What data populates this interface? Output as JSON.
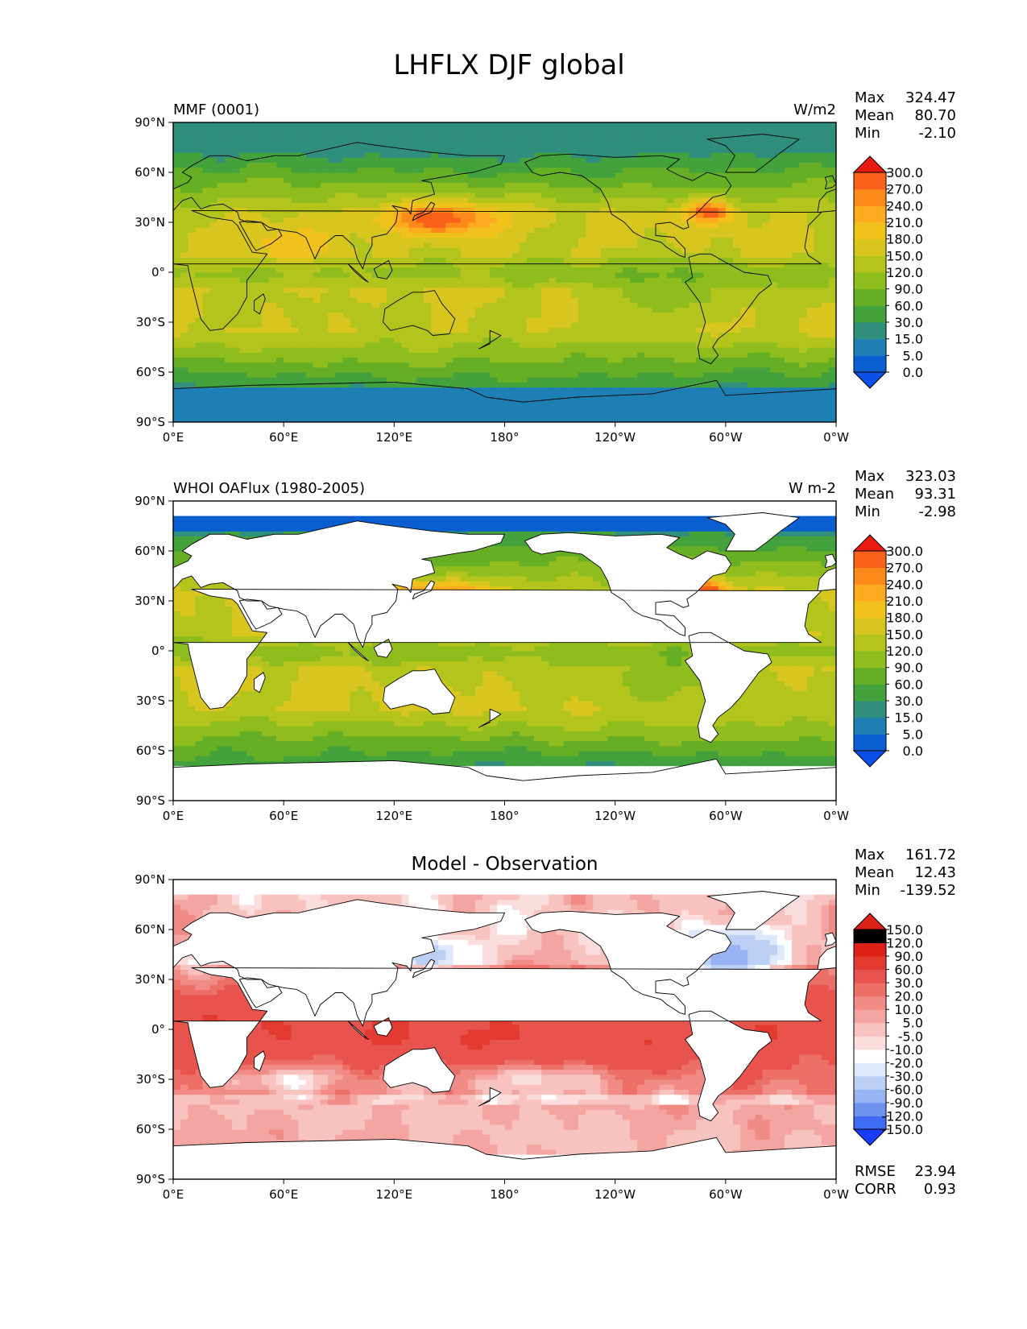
{
  "figure": {
    "title": "LHFLX DJF global"
  },
  "colors": {
    "abs_levels": [
      "#0a4fe8",
      "#0a5fd0",
      "#1e7fb4",
      "#2f8f7c",
      "#43a23c",
      "#66af25",
      "#8fbd1e",
      "#b3c51d",
      "#d8c61e",
      "#f1c21c",
      "#fbab1d",
      "#fb8a1b",
      "#f9611a",
      "#f23214",
      "#e81b0e"
    ],
    "diff_levels": [
      "#1a3cff",
      "#3f6af2",
      "#6d92ee",
      "#97b3f1",
      "#bccff4",
      "#dfe7fa",
      "#ffffff",
      "#fbdddd",
      "#f8c2bf",
      "#f4a5a1",
      "#f08b86",
      "#ec6f68",
      "#e8544d",
      "#e33a31",
      "#dd2016"
    ],
    "land": "#ffffff",
    "coast": "#000000"
  },
  "chart_data": [
    {
      "type": "heatmap",
      "id": "panel1",
      "title": "",
      "left_label": "MMF (0001)",
      "right_label": "W/m2",
      "stats": {
        "Max": "324.47",
        "Mean": "80.70",
        "Min": "-2.10"
      },
      "colorbar_labels": [
        "300.0",
        "270.0",
        "240.0",
        "210.0",
        "180.0",
        "150.0",
        "120.0",
        "90.0",
        "60.0",
        "30.0",
        "15.0",
        "5.0",
        "0.0"
      ],
      "colorbar_levels": [
        0,
        5,
        15,
        30,
        60,
        90,
        120,
        150,
        180,
        210,
        240,
        270,
        300
      ],
      "extend": "both",
      "xticks": [
        "0°E",
        "60°E",
        "120°E",
        "180°",
        "120°W",
        "60°W",
        "0°W"
      ],
      "yticks": [
        "90°N",
        "60°N",
        "30°N",
        "0°",
        "30°S",
        "60°S",
        "90°S"
      ],
      "xlim": [
        0,
        360
      ],
      "ylim": [
        -90,
        90
      ],
      "land_masked": false
    },
    {
      "type": "heatmap",
      "id": "panel2",
      "title": "",
      "left_label": "WHOI OAFlux (1980-2005)",
      "right_label": "W m-2",
      "stats": {
        "Max": "323.03",
        "Mean": "93.31",
        "Min": "-2.98"
      },
      "colorbar_labels": [
        "300.0",
        "270.0",
        "240.0",
        "210.0",
        "180.0",
        "150.0",
        "120.0",
        "90.0",
        "60.0",
        "30.0",
        "15.0",
        "5.0",
        "0.0"
      ],
      "colorbar_levels": [
        0,
        5,
        15,
        30,
        60,
        90,
        120,
        150,
        180,
        210,
        240,
        270,
        300
      ],
      "extend": "both",
      "xticks": [
        "0°E",
        "60°E",
        "120°E",
        "180°",
        "120°W",
        "60°W",
        "0°W"
      ],
      "yticks": [
        "90°N",
        "60°N",
        "30°N",
        "0°",
        "30°S",
        "60°S",
        "90°S"
      ],
      "xlim": [
        0,
        360
      ],
      "ylim": [
        -90,
        90
      ],
      "land_masked": true
    },
    {
      "type": "heatmap",
      "id": "panel3",
      "title": "Model - Observation",
      "left_label": "",
      "right_label": "",
      "stats": {
        "Max": "161.72",
        "Mean": "12.43",
        "Min": "-139.52"
      },
      "colorbar_labels": [
        "150.0",
        "120.0",
        "90.0",
        "60.0",
        "30.0",
        "20.0",
        "10.0",
        "5.0",
        "-5.0",
        "-10.0",
        "-20.0",
        "-30.0",
        "-60.0",
        "-90.0",
        "-120.0",
        "-150.0"
      ],
      "colorbar_levels": [
        -150,
        -120,
        -90,
        -60,
        -30,
        -20,
        -10,
        -5,
        5,
        10,
        20,
        30,
        60,
        90,
        120,
        150
      ],
      "extend": "both",
      "xticks": [
        "0°E",
        "60°E",
        "120°E",
        "180°",
        "120°W",
        "60°W",
        "0°W"
      ],
      "yticks": [
        "90°N",
        "60°N",
        "30°N",
        "0°",
        "30°S",
        "60°S",
        "90°S"
      ],
      "xlim": [
        0,
        360
      ],
      "ylim": [
        -90,
        90
      ],
      "land_masked": true,
      "metrics": {
        "RMSE": "23.94",
        "CORR": "0.93"
      }
    }
  ]
}
